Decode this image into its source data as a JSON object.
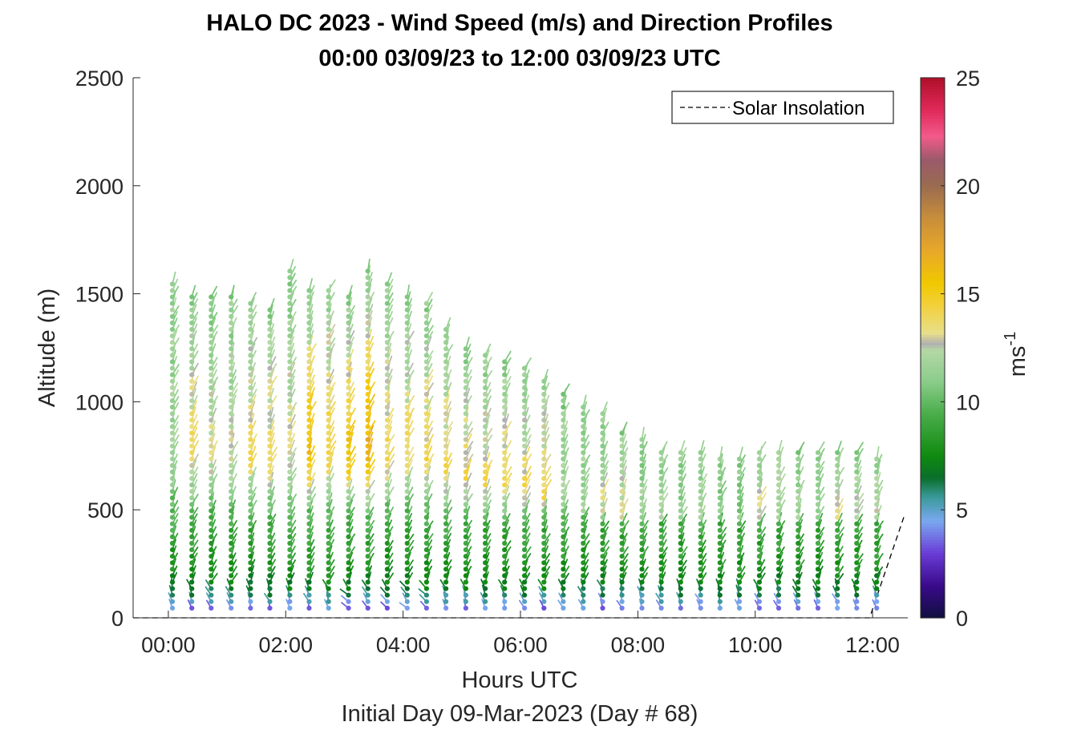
{
  "chart_data": {
    "type": "scatter",
    "title": "HALO DC 2023 - Wind Speed (m/s) and Direction Profiles",
    "subtitle": "00:00 03/09/23 to 12:00 03/09/23  UTC",
    "xlabel": "Hours UTC",
    "xlabel2": "Initial Day 09-Mar-2023 (Day # 68)",
    "ylabel": "Altitude (m)",
    "xlim": [
      -0.6,
      12.6
    ],
    "ylim": [
      0,
      2500
    ],
    "xticks": [
      0,
      2,
      4,
      6,
      8,
      10,
      12
    ],
    "xtick_labels": [
      "00:00",
      "02:00",
      "04:00",
      "06:00",
      "08:00",
      "10:00",
      "12:00"
    ],
    "yticks": [
      0,
      500,
      1000,
      1500,
      2000,
      2500
    ],
    "ytick_labels": [
      "0",
      "500",
      "1000",
      "1500",
      "2000",
      "2500"
    ],
    "colorbar": {
      "label": "ms",
      "label_exponent": "-1",
      "range": [
        0,
        25
      ],
      "ticks": [
        0,
        5,
        10,
        15,
        20,
        25
      ],
      "tick_labels": [
        "0",
        "5",
        "10",
        "15",
        "20",
        "25"
      ]
    },
    "legend": {
      "entries": [
        "Solar Insolation"
      ],
      "placement": "top-right"
    },
    "solar_insolation": {
      "x": [
        11.95,
        12.55
      ],
      "y": [
        0,
        480
      ],
      "style": "dashed",
      "color": "#000000"
    },
    "profile_times_h": [
      0.07,
      0.4,
      0.73,
      1.07,
      1.4,
      1.73,
      2.07,
      2.4,
      2.73,
      3.07,
      3.4,
      3.73,
      4.07,
      4.4,
      4.73,
      5.07,
      5.4,
      5.73,
      6.07,
      6.4,
      6.73,
      7.07,
      7.4,
      7.73,
      8.07,
      8.4,
      8.73,
      9.07,
      9.4,
      9.73,
      10.07,
      10.4,
      10.73,
      11.07,
      11.4,
      11.73,
      12.07
    ],
    "profile_top_m": [
      1570,
      1490,
      1490,
      1490,
      1460,
      1440,
      1610,
      1530,
      1530,
      1490,
      1610,
      1570,
      1490,
      1470,
      1360,
      1270,
      1230,
      1210,
      1160,
      1120,
      1040,
      990,
      950,
      880,
      830,
      790,
      790,
      790,
      760,
      760,
      790,
      790,
      790,
      790,
      790,
      790,
      760
    ],
    "profile_peak_speed_ms": [
      12,
      14,
      13,
      13,
      14,
      14,
      13,
      16,
      15,
      16,
      17,
      14,
      14,
      14,
      14,
      14,
      14,
      14,
      14,
      14,
      12,
      12,
      13,
      13,
      12,
      12,
      11,
      12,
      11,
      11,
      14,
      13,
      12,
      12,
      13,
      13,
      13
    ],
    "gate_spacing_m": 30,
    "colormap_stops": [
      {
        "v": 0,
        "c": "#101040"
      },
      {
        "v": 1.5,
        "c": "#3a0a8a"
      },
      {
        "v": 3,
        "c": "#6a3cd6"
      },
      {
        "v": 4.5,
        "c": "#7aa8f0"
      },
      {
        "v": 5.6,
        "c": "#3a9a9a"
      },
      {
        "v": 6.5,
        "c": "#0a6e2a"
      },
      {
        "v": 7.5,
        "c": "#0f8a10"
      },
      {
        "v": 9.5,
        "c": "#4cae4c"
      },
      {
        "v": 11,
        "c": "#8ccd8c"
      },
      {
        "v": 12.4,
        "c": "#b4d8a4"
      },
      {
        "v": 12.7,
        "c": "#b0b0b0"
      },
      {
        "v": 13.2,
        "c": "#e8df8a"
      },
      {
        "v": 14.5,
        "c": "#f2d03a"
      },
      {
        "v": 15.5,
        "c": "#f0c800"
      },
      {
        "v": 17,
        "c": "#e8a82a"
      },
      {
        "v": 18.5,
        "c": "#c88e3a"
      },
      {
        "v": 20,
        "c": "#9a6c50"
      },
      {
        "v": 21.2,
        "c": "#9a5a6a"
      },
      {
        "v": 22.3,
        "c": "#f25a8a"
      },
      {
        "v": 23.5,
        "c": "#e02a5a"
      },
      {
        "v": 25,
        "c": "#b0102a"
      }
    ]
  }
}
